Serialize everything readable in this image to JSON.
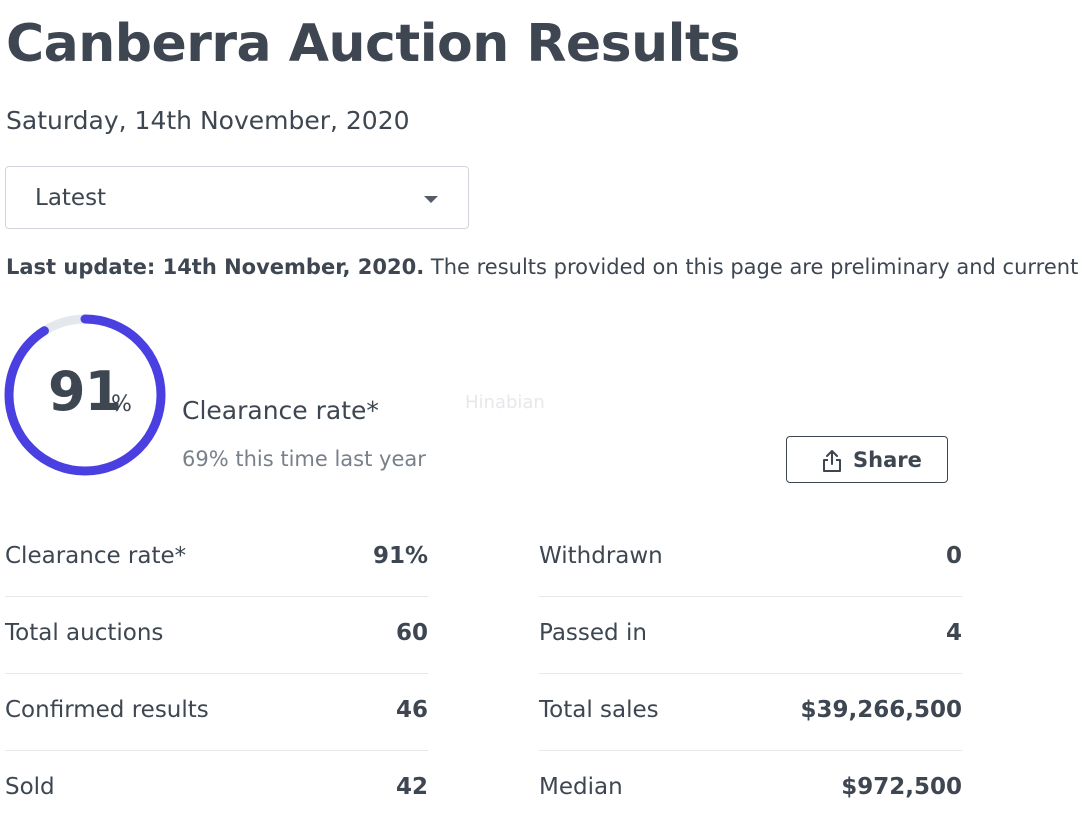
{
  "page": {
    "title": "Canberra Auction Results",
    "date": "Saturday, 14th November, 2020"
  },
  "select": {
    "value": "Latest",
    "icon": "chevron-down-icon"
  },
  "update": {
    "bold": "Last update: 14th November, 2020.",
    "text": " The results provided on this page are preliminary and current"
  },
  "gauge": {
    "value": "91",
    "unit": "%",
    "fraction": 0.91,
    "color": "#4a3fe0",
    "track_color": "#e4e7ec"
  },
  "clearance": {
    "label": "Clearance rate*",
    "last_year": "69% this time last year"
  },
  "watermark": "Hinabian",
  "share": {
    "label": "Share",
    "icon": "share-icon"
  },
  "stats": {
    "left": [
      {
        "label": "Clearance rate*",
        "value": "91%"
      },
      {
        "label": "Total auctions",
        "value": "60"
      },
      {
        "label": "Confirmed results",
        "value": "46"
      },
      {
        "label": "Sold",
        "value": "42"
      }
    ],
    "right": [
      {
        "label": "Withdrawn",
        "value": "0"
      },
      {
        "label": "Passed in",
        "value": "4"
      },
      {
        "label": "Total sales",
        "value": "$39,266,500"
      },
      {
        "label": "Median",
        "value": "$972,500"
      }
    ]
  }
}
